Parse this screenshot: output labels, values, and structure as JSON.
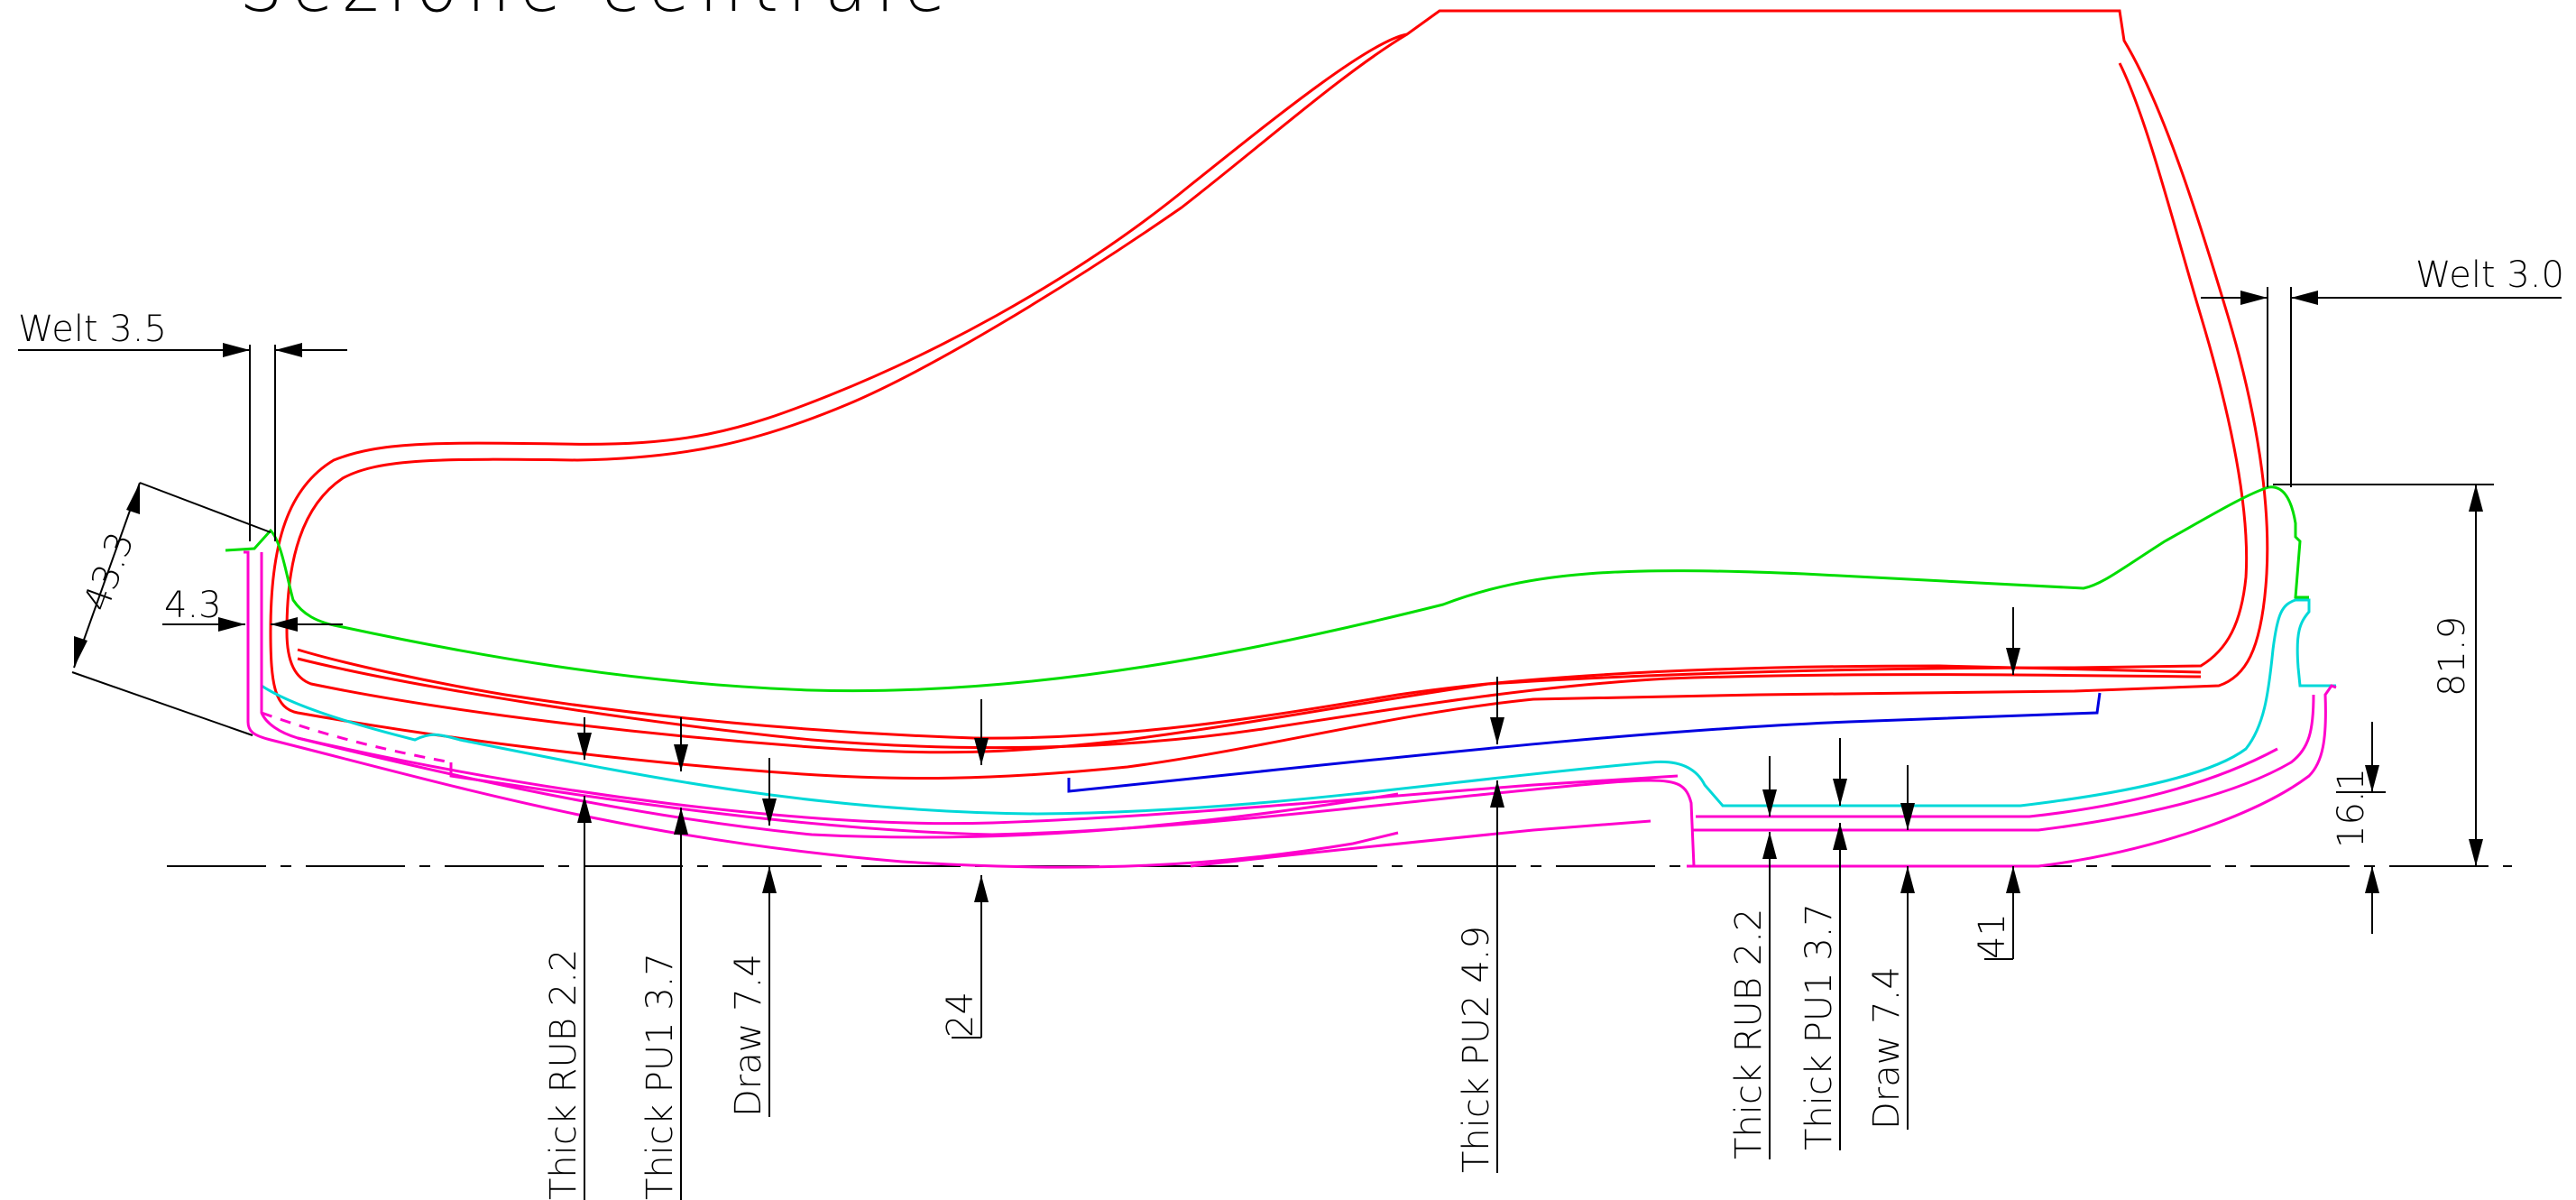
{
  "title": "Sezione centrale",
  "colors": {
    "upper": "#ff0000",
    "insole": "#00dd00",
    "rubber": "#ff00cc",
    "midsole": "#00d8d8",
    "shank": "#0000e0",
    "dimension": "#000000"
  },
  "dimensions": {
    "welt_left": "Welt 3.5",
    "welt_right": "Welt 3.0",
    "angle_thickness": "43.3",
    "welt_offset": "4.3",
    "height_total": "81.9",
    "heel_offset": "16.1",
    "forefoot": {
      "thick_rub": "Thick RUB 2.2",
      "thick_pu1": "Thick PU1 3.7",
      "draw": "Draw 7.4",
      "sole_thickness": "24"
    },
    "thick_pu2": "Thick PU2 4.9",
    "heel": {
      "thick_rub": "Thick RUB 2.2",
      "thick_pu1": "Thick PU1 3.7",
      "draw": "Draw 7.4",
      "heel_thickness": "41"
    }
  }
}
